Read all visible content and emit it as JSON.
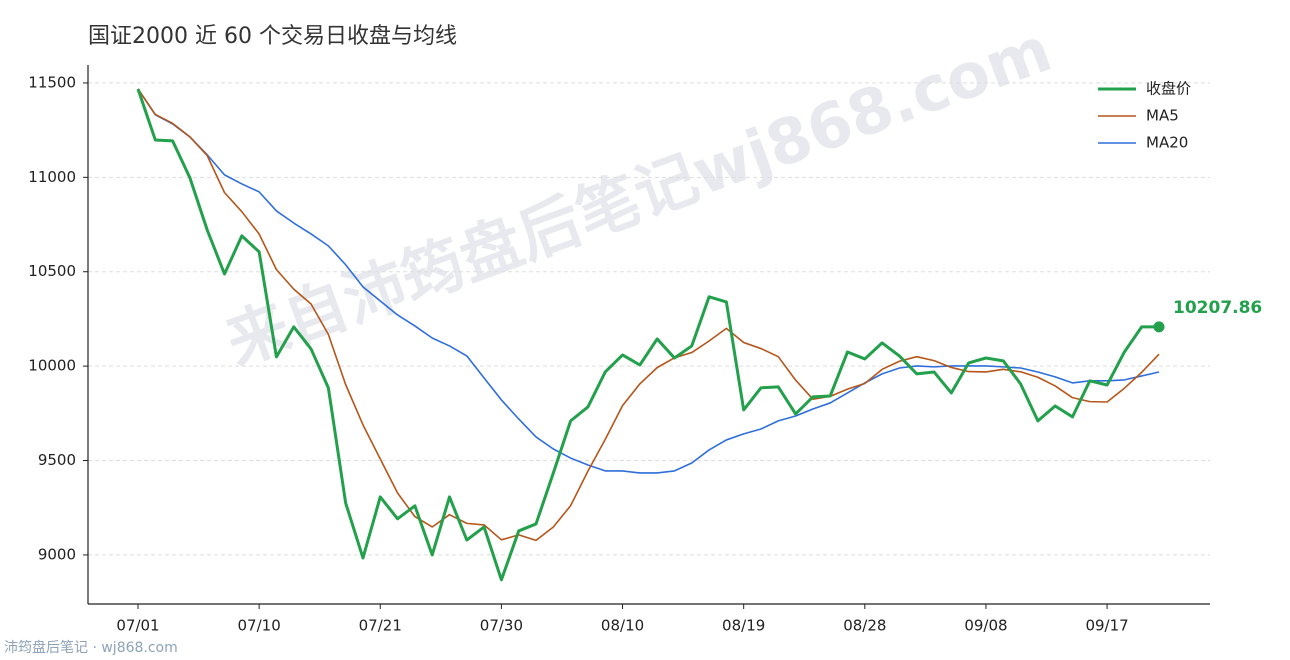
{
  "chart_data": {
    "type": "line",
    "title": "国证2000 近 60 个交易日收盘与均线",
    "watermark": "来自沛筠盘后笔记wj868.com",
    "footer": "沛筠盘后笔记 · wj868.com",
    "categories": [
      "07/01",
      null,
      null,
      null,
      null,
      null,
      null,
      "07/10",
      null,
      null,
      null,
      null,
      null,
      null,
      "07/21",
      null,
      null,
      null,
      null,
      null,
      null,
      "07/30",
      null,
      null,
      null,
      null,
      null,
      null,
      "08/10",
      null,
      null,
      null,
      null,
      null,
      null,
      "08/19",
      null,
      null,
      null,
      null,
      null,
      null,
      "08/28",
      null,
      null,
      null,
      null,
      null,
      null,
      "09/08",
      null,
      null,
      null,
      null,
      null,
      null,
      "09/17",
      null,
      null,
      null
    ],
    "series": [
      {
        "name": "收盘价",
        "color": "#22a04b",
        "values": [
          11468,
          11198,
          11193,
          10997,
          10721,
          10488,
          10690,
          10605,
          10049,
          10208,
          10091,
          9885,
          9275,
          8984,
          9307,
          9191,
          9260,
          9000,
          9307,
          9079,
          9148,
          8868,
          9127,
          9164,
          9434,
          9710,
          9784,
          9969,
          10059,
          10006,
          10144,
          10043,
          10107,
          10367,
          10340,
          9768,
          9885,
          9890,
          9747,
          9837,
          9842,
          10075,
          10038,
          10123,
          10054,
          9959,
          9969,
          9858,
          10017,
          10043,
          10028,
          9906,
          9710,
          9789,
          9731,
          9922,
          9900,
          10075,
          10208,
          10207.86
        ]
      },
      {
        "name": "MA5",
        "color": "#b5561a",
        "values": [
          11468,
          11333,
          11286,
          11214,
          11115,
          10919,
          10818,
          10700,
          10511,
          10408,
          10329,
          10168,
          9902,
          9689,
          9508,
          9328,
          9203,
          9148,
          9213,
          9167,
          9159,
          9080,
          9106,
          9077,
          9148,
          9261,
          9444,
          9612,
          9791,
          9906,
          9992,
          10044,
          10072,
          10133,
          10200,
          10125,
          10093,
          10050,
          9926,
          9825,
          9840,
          9878,
          9908,
          9983,
          10026,
          10050,
          10029,
          9993,
          9971,
          9969,
          9983,
          9970,
          9941,
          9895,
          9833,
          9812,
          9810,
          9883,
          9967,
          10063
        ]
      },
      {
        "name": "MA20",
        "color": "#2f6fdc",
        "values": [
          11468,
          11331,
          11283,
          11214,
          11119,
          11013,
          10965,
          10923,
          10822,
          10758,
          10700,
          10637,
          10537,
          10420,
          10345,
          10271,
          10213,
          10149,
          10107,
          10054,
          9937,
          9821,
          9720,
          9625,
          9561,
          9513,
          9476,
          9445,
          9445,
          9434,
          9434,
          9445,
          9487,
          9556,
          9609,
          9641,
          9667,
          9710,
          9736,
          9773,
          9805,
          9858,
          9911,
          9959,
          9990,
          10001,
          9996,
          10001,
          10001,
          10001,
          9996,
          9990,
          9969,
          9943,
          9911,
          9922,
          9922,
          9927,
          9948,
          9969
        ]
      }
    ],
    "ylim": [
      8740,
      11595
    ],
    "yticks": [
      9000,
      9500,
      10000,
      10500,
      11000,
      11500
    ],
    "grid": true,
    "legend": "upper right"
  }
}
